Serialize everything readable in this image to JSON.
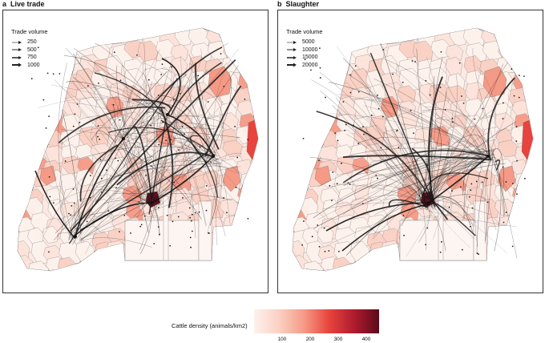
{
  "panels": [
    {
      "letter": "a",
      "title": "Live trade",
      "legend": {
        "title": "Trade volume",
        "items": [
          {
            "label": "250",
            "width": 0.6
          },
          {
            "label": "500",
            "width": 1.0
          },
          {
            "label": "750",
            "width": 1.5
          },
          {
            "label": "1000",
            "width": 2.0
          }
        ]
      }
    },
    {
      "letter": "b",
      "title": "Slaughter",
      "legend": {
        "title": "Trade volume",
        "items": [
          {
            "label": "5000",
            "width": 0.6
          },
          {
            "label": "10000",
            "width": 1.0
          },
          {
            "label": "15000",
            "width": 1.5
          },
          {
            "label": "20000",
            "width": 2.0
          }
        ]
      }
    }
  ],
  "colorbar": {
    "label": "Cattle density (animals/km2)",
    "ticks": [
      "100",
      "200",
      "300",
      "400"
    ],
    "colors": [
      "#fdf1ec",
      "#fad0c3",
      "#f59a86",
      "#e8433d",
      "#b01c2e",
      "#5a0a1c"
    ]
  }
}
